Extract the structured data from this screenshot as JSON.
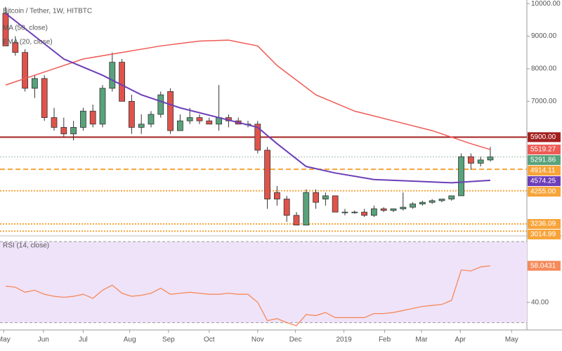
{
  "chart_data": {
    "type": "candlestick",
    "title": "Bitcoin / Tether, 1W, HITBTC",
    "x": [
      0,
      1,
      2,
      3,
      4,
      5,
      6,
      7,
      8,
      9,
      10,
      11,
      12,
      13,
      14,
      15,
      16,
      17,
      18,
      19,
      20,
      21,
      22,
      23,
      24,
      25,
      26,
      27,
      28,
      29,
      30,
      31,
      32,
      33,
      34,
      35,
      36,
      37,
      38,
      39,
      40,
      41,
      42,
      43,
      44,
      45,
      46,
      47,
      48,
      49,
      50
    ],
    "open": [
      9700,
      8800,
      8500,
      7400,
      7700,
      6500,
      6200,
      6000,
      6200,
      6700,
      6300,
      7400,
      8200,
      7000,
      6200,
      6300,
      6600,
      7300,
      6100,
      6400,
      6500,
      6400,
      6300,
      6500,
      6400,
      6300,
      6300,
      5500,
      4200,
      4000,
      3500,
      3200,
      4200,
      4000,
      4100,
      3600,
      3600,
      3600,
      3500,
      3700,
      3650,
      3700,
      3750,
      3850,
      3900,
      3950,
      4000,
      4100,
      5300,
      5100,
      5200
    ],
    "high": [
      9900,
      9000,
      8600,
      7800,
      7800,
      6800,
      6500,
      6400,
      6800,
      6900,
      7500,
      8500,
      8300,
      7200,
      6600,
      6700,
      7300,
      7400,
      6600,
      6800,
      6600,
      6500,
      7500,
      6600,
      6500,
      6400,
      6400,
      5600,
      4400,
      4100,
      3600,
      4300,
      4300,
      4200,
      4100,
      3700,
      3650,
      3700,
      3800,
      3750,
      3700,
      4200,
      3900,
      3950,
      4000,
      4000,
      4100,
      5400,
      5400,
      5300,
      5600
    ],
    "low": [
      8700,
      8400,
      7300,
      7100,
      6400,
      6100,
      5900,
      5800,
      6100,
      6200,
      6200,
      7300,
      7000,
      6000,
      6000,
      6200,
      6500,
      6000,
      6100,
      6300,
      6300,
      6300,
      6100,
      6200,
      6300,
      6200,
      5400,
      3700,
      3800,
      3300,
      3200,
      3200,
      3700,
      3800,
      3600,
      3500,
      3550,
      3450,
      3450,
      3600,
      3600,
      3650,
      3700,
      3800,
      3850,
      3900,
      3950,
      4100,
      4900,
      5000,
      5150
    ],
    "close": [
      8700,
      8500,
      7400,
      7700,
      6500,
      6200,
      6000,
      6200,
      6700,
      6300,
      7400,
      8200,
      7000,
      6200,
      6300,
      6600,
      7200,
      6100,
      6400,
      6500,
      6400,
      6300,
      6500,
      6400,
      6300,
      6300,
      5500,
      4000,
      4000,
      3500,
      3200,
      4200,
      3900,
      4100,
      3600,
      3600,
      3600,
      3500,
      3700,
      3650,
      3700,
      3750,
      3850,
      3900,
      3950,
      4000,
      4100,
      5300,
      5100,
      5200,
      5291.86
    ],
    "up_color": "#58a27c",
    "down_color": "#e0534b",
    "xlim": [
      -0.58,
      53.77
    ],
    "xticks": [
      {
        "value": -0.2,
        "label": "May"
      },
      {
        "value": 3.9,
        "label": "Jun"
      },
      {
        "value": 8,
        "label": "Jul"
      },
      {
        "value": 12.8,
        "label": "Aug"
      },
      {
        "value": 16.8,
        "label": "Sep"
      },
      {
        "value": 21,
        "label": "Oct"
      },
      {
        "value": 26,
        "label": "Nov"
      },
      {
        "value": 29.9,
        "label": "Dec"
      },
      {
        "value": 34.9,
        "label": "2019"
      },
      {
        "value": 39.1,
        "label": "Feb"
      },
      {
        "value": 42.9,
        "label": "Mar"
      },
      {
        "value": 46.9,
        "label": "Apr"
      },
      {
        "value": 52.2,
        "label": "May"
      }
    ],
    "ylim": [
      2870,
      10110
    ],
    "yticks": [
      {
        "value": 10000,
        "label": "10000.00"
      },
      {
        "value": 9000,
        "label": "9000.00"
      },
      {
        "value": 8000,
        "label": "8000.00"
      },
      {
        "value": 7000,
        "label": "7000.00"
      }
    ],
    "series": [
      {
        "name": "MA (50, close)",
        "color": "#ef5b55",
        "x": [
          0,
          4,
          8,
          12,
          16,
          20,
          23,
          26,
          28,
          32,
          36,
          40,
          44,
          48,
          50
        ],
        "values": [
          7500,
          7900,
          8300,
          8500,
          8700,
          8850,
          8880,
          8700,
          8100,
          7200,
          6700,
          6400,
          6100,
          5700,
          5519.27
        ]
      },
      {
        "name": "EMA (20, close)",
        "color": "#6c3fb8",
        "x": [
          0,
          3,
          6,
          10,
          14,
          18,
          22,
          26,
          28,
          31,
          34,
          38,
          42,
          46,
          50
        ],
        "values": [
          9700,
          9000,
          8300,
          7800,
          7200,
          6800,
          6500,
          6200,
          5700,
          5000,
          4800,
          4600,
          4550,
          4500,
          4574.25
        ]
      }
    ],
    "levels": [
      {
        "value": 5900,
        "label": "5900.00",
        "color": "#a3201f",
        "line": "solid"
      },
      {
        "value": 5519.27,
        "label": "5519.27",
        "color": "#ef5b55",
        "line": "none"
      },
      {
        "value": 5291.86,
        "label": "5291.86",
        "color": "#58a27c",
        "line": "dotted"
      },
      {
        "value": 4914.11,
        "label": "4914.11",
        "color": "#f7a43a",
        "line": "dashed"
      },
      {
        "value": 4574.25,
        "label": "4574.25",
        "color": "#6c3fb8",
        "line": "none"
      },
      {
        "value": 4255,
        "label": "4255.00",
        "color": "#f7a43a",
        "line": "dotted"
      },
      {
        "value": 3236.09,
        "label": "3236.09",
        "color": "#f7a43a",
        "line": "dotted"
      },
      {
        "value": 3014.99,
        "label": "3014.99",
        "color": "#f7a43a",
        "line": "dotted"
      }
    ],
    "rsi": {
      "title": "RSI (14, close)",
      "color": "#f58a5a",
      "band": [
        30,
        70
      ],
      "ylim": [
        27.8,
        72.1
      ],
      "yticks": [
        {
          "value": 40,
          "label": "40.00"
        }
      ],
      "values": [
        48,
        47.5,
        45,
        46,
        44,
        43,
        42.5,
        43,
        44,
        42,
        46,
        48.5,
        44.5,
        43,
        43.5,
        44.5,
        47,
        44,
        44.5,
        45,
        44.5,
        44,
        44,
        44.5,
        44,
        44,
        40,
        31,
        32,
        30,
        28.5,
        34,
        33.5,
        35,
        32.5,
        32.5,
        32.5,
        32.5,
        34.5,
        34.5,
        35,
        36,
        37,
        38,
        38.5,
        39,
        41,
        56,
        55.5,
        57.5,
        58.0431
      ],
      "last_label": "58.0431"
    }
  }
}
